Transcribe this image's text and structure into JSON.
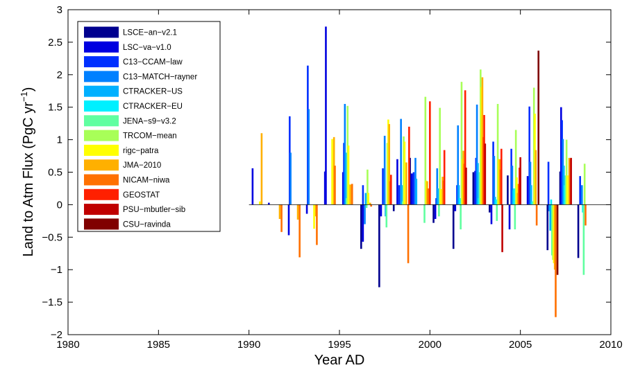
{
  "chart_data": {
    "type": "bar",
    "xlabel": "Year AD",
    "ylabel_main": "Land to Atm Flux (PgC yr",
    "ylabel_sup": "−1",
    "ylabel_close": ")",
    "xlim": [
      1980,
      2010
    ],
    "ylim": [
      -2,
      3
    ],
    "x_ticks": [
      1980,
      1985,
      1990,
      1995,
      2000,
      2005,
      2010
    ],
    "y_ticks": [
      -2,
      -1.5,
      -1,
      -0.5,
      0,
      0.5,
      1,
      1.5,
      2,
      2.5,
      3
    ],
    "x_tick_labels": [
      "1980",
      "1985",
      "1990",
      "1995",
      "2000",
      "2005",
      "2010"
    ],
    "y_tick_labels": [
      "−2",
      "−1.5",
      "−1",
      "−0.5",
      "0",
      "0.5",
      "1",
      "1.5",
      "2",
      "2.5",
      "3"
    ],
    "grid": false,
    "legend_position": "top-left",
    "series": [
      {
        "name": "LSCE−an−v2.1",
        "color": "#00008f",
        "points": [
          [
            1996.2,
            -0.68
          ],
          [
            1997.2,
            -1.27
          ],
          [
            1998.0,
            -0.1
          ],
          [
            1998.9,
            0.72
          ],
          [
            2000.2,
            -0.28
          ],
          [
            2001.3,
            -0.68
          ],
          [
            2002.4,
            0.5
          ],
          [
            2003.3,
            -0.12
          ],
          [
            2004.3,
            0.45
          ],
          [
            2006.5,
            -0.7
          ],
          [
            2007.2,
            0.51
          ],
          [
            2008.2,
            -0.82
          ]
        ]
      },
      {
        "name": "LSC−va−v1.0",
        "color": "#0000e0",
        "points": [
          [
            1990.2,
            0.56
          ],
          [
            1991.1,
            0.03
          ],
          [
            1992.2,
            -0.47
          ],
          [
            1993.2,
            -0.14
          ],
          [
            1994.2,
            0.51
          ],
          [
            1994.25,
            2.74
          ],
          [
            1995.2,
            0.5
          ],
          [
            1996.3,
            -0.57
          ],
          [
            1997.3,
            -0.18
          ],
          [
            1998.2,
            0.7
          ],
          [
            1999.0,
            0.48
          ],
          [
            2000.3,
            -0.22
          ],
          [
            2001.4,
            -0.1
          ],
          [
            2002.5,
            0.52
          ],
          [
            2003.4,
            -0.3
          ],
          [
            2004.4,
            -0.38
          ],
          [
            2005.4,
            0.44
          ],
          [
            2007.25,
            1.5
          ]
        ]
      },
      {
        "name": "C13−CCAM−law",
        "color": "#0030ff",
        "points": [
          [
            1992.25,
            1.36
          ],
          [
            1993.25,
            2.14
          ],
          [
            1995.25,
            0.95
          ],
          [
            1996.3,
            0.3
          ],
          [
            1997.4,
            0.56
          ],
          [
            1998.3,
            0.3
          ],
          [
            1999.1,
            0.5
          ],
          [
            2000.35,
            0.1
          ],
          [
            2001.5,
            0.3
          ],
          [
            2002.55,
            0.72
          ],
          [
            2003.5,
            0.97
          ],
          [
            2004.5,
            0.86
          ],
          [
            2005.5,
            1.51
          ],
          [
            2006.55,
            0.66
          ],
          [
            2007.3,
            1.3
          ],
          [
            2008.3,
            0.44
          ]
        ]
      },
      {
        "name": "C13−MATCH−rayner",
        "color": "#0080ff",
        "points": [
          [
            1992.3,
            0.8
          ],
          [
            1993.3,
            1.47
          ],
          [
            1995.3,
            1.55
          ],
          [
            1996.4,
            -0.3
          ],
          [
            1997.5,
            1.06
          ],
          [
            1998.4,
            1.32
          ],
          [
            1999.2,
            0.72
          ],
          [
            2000.4,
            0.56
          ],
          [
            2001.55,
            1.22
          ],
          [
            2002.6,
            1.54
          ],
          [
            2003.55,
            0.75
          ],
          [
            2004.55,
            0.6
          ],
          [
            2005.55,
            0.66
          ],
          [
            2006.6,
            -0.1
          ],
          [
            2007.35,
            1.01
          ],
          [
            2008.4,
            0.3
          ]
        ]
      },
      {
        "name": "CTRACKER−US",
        "color": "#00b0ff",
        "points": [
          [
            1995.35,
            0.8
          ],
          [
            1996.45,
            0.18
          ],
          [
            1997.55,
            -0.18
          ],
          [
            1998.45,
            0.3
          ],
          [
            1999.25,
            0.4
          ],
          [
            2000.45,
            0.25
          ],
          [
            2001.6,
            0.3
          ],
          [
            2002.65,
            0.64
          ],
          [
            2003.6,
            0.12
          ],
          [
            2004.6,
            0.22
          ],
          [
            2005.6,
            0.3
          ],
          [
            2006.65,
            -0.4
          ],
          [
            2007.4,
            0.6
          ]
        ]
      },
      {
        "name": "CTRACKER−EU",
        "color": "#00f0ff",
        "points": [
          [
            2001.65,
            0.1
          ],
          [
            2002.7,
            0.1
          ],
          [
            2003.65,
            0.08
          ],
          [
            2004.65,
            0.25
          ],
          [
            2005.65,
            0.05
          ],
          [
            2006.7,
            0.08
          ],
          [
            2007.45,
            0.3
          ],
          [
            2008.45,
            -0.12
          ]
        ]
      },
      {
        "name": "JENA−s9−v3.2",
        "color": "#60ffa0",
        "points": [
          [
            1995.4,
            0.1
          ],
          [
            1996.5,
            -0.05
          ],
          [
            1997.6,
            -0.35
          ],
          [
            1998.5,
            0.05
          ],
          [
            1999.7,
            -0.28
          ],
          [
            2000.5,
            -0.18
          ],
          [
            2001.7,
            -0.38
          ],
          [
            2002.75,
            0.5
          ],
          [
            2003.7,
            -0.25
          ],
          [
            2004.7,
            -0.38
          ],
          [
            2005.7,
            0.05
          ],
          [
            2006.75,
            -0.78
          ],
          [
            2007.5,
            0.45
          ],
          [
            2008.5,
            -1.08
          ]
        ]
      },
      {
        "name": "TRCOM−mean",
        "color": "#a8ff58",
        "points": [
          [
            1995.45,
            1.52
          ],
          [
            1996.55,
            0.54
          ],
          [
            1997.65,
            0.95
          ],
          [
            1998.55,
            1.05
          ],
          [
            1999.75,
            1.66
          ],
          [
            2000.55,
            1.49
          ],
          [
            2001.75,
            1.89
          ],
          [
            2002.8,
            2.08
          ],
          [
            2003.75,
            1.55
          ],
          [
            2004.75,
            1.15
          ],
          [
            2005.75,
            1.8
          ],
          [
            2006.8,
            -0.85
          ],
          [
            2007.55,
            1.0
          ],
          [
            2008.55,
            0.63
          ]
        ]
      },
      {
        "name": "rigc−patra",
        "color": "#ffff00",
        "points": [
          [
            1990.6,
            0.05
          ],
          [
            1993.6,
            -0.37
          ],
          [
            1994.6,
            1.01
          ],
          [
            1995.5,
            0.91
          ],
          [
            1996.6,
            0.18
          ],
          [
            1997.7,
            1.31
          ],
          [
            1998.6,
            0.97
          ],
          [
            1999.8,
            0.37
          ],
          [
            2000.6,
            0.24
          ],
          [
            2001.8,
            0.7
          ],
          [
            2002.85,
            1.81
          ],
          [
            2003.8,
            0.7
          ],
          [
            2004.8,
            0.42
          ],
          [
            2005.8,
            1.4
          ],
          [
            2006.85,
            -0.9
          ],
          [
            2007.6,
            0.45
          ]
        ]
      },
      {
        "name": "JMA−2010",
        "color": "#ffb000",
        "points": [
          [
            1990.7,
            1.1
          ],
          [
            1991.7,
            -0.22
          ],
          [
            1992.7,
            -0.23
          ],
          [
            1993.7,
            -0.18
          ],
          [
            1994.7,
            1.04
          ],
          [
            1995.6,
            0.31
          ],
          [
            1996.7,
            0.03
          ],
          [
            1997.75,
            1.24
          ],
          [
            1998.7,
            0.65
          ],
          [
            1999.85,
            0.36
          ],
          [
            2000.7,
            0.43
          ],
          [
            2001.85,
            0.83
          ],
          [
            2002.9,
            1.96
          ],
          [
            2003.85,
            0.7
          ],
          [
            2004.85,
            0.18
          ],
          [
            2005.85,
            0.84
          ],
          [
            2006.9,
            -1.0
          ],
          [
            2007.7,
            0.72
          ]
        ]
      },
      {
        "name": "NICAM−niwa",
        "color": "#ff7000",
        "points": [
          [
            1991.8,
            -0.42
          ],
          [
            1992.8,
            -0.81
          ],
          [
            1993.75,
            -0.62
          ],
          [
            1994.75,
            0.6
          ],
          [
            1995.7,
            0.32
          ],
          [
            1996.75,
            -0.03
          ],
          [
            1997.8,
            0.36
          ],
          [
            1998.8,
            -0.9
          ],
          [
            1999.9,
            0.25
          ],
          [
            2000.75,
            0.37
          ],
          [
            2001.9,
            0.63
          ],
          [
            2002.95,
            1.04
          ],
          [
            2003.9,
            0.54
          ],
          [
            2004.9,
            0.32
          ],
          [
            2005.9,
            -0.32
          ],
          [
            2006.95,
            -1.73
          ],
          [
            2007.75,
            0.7
          ],
          [
            2008.6,
            -0.32
          ]
        ]
      },
      {
        "name": "GEOSTAT",
        "color": "#ff2000",
        "points": [
          [
            1997.85,
            0.46
          ],
          [
            1998.85,
            1.2
          ],
          [
            2000.0,
            1.59
          ],
          [
            2000.8,
            0.84
          ],
          [
            2001.95,
            1.76
          ],
          [
            2003.0,
            1.38
          ],
          [
            2003.95,
            0.86
          ],
          [
            2004.95,
            0.57
          ]
        ]
      },
      {
        "name": "PSU−mbutler−sib",
        "color": "#c00000",
        "points": [
          [
            2002.0,
            0.57
          ],
          [
            2003.05,
            0.94
          ],
          [
            2004.0,
            -0.73
          ],
          [
            2005.0,
            0.73
          ],
          [
            2007.8,
            0.72
          ]
        ]
      },
      {
        "name": "CSU−ravinda",
        "color": "#800000",
        "points": [
          [
            2006.0,
            2.37
          ],
          [
            2007.05,
            -1.08
          ]
        ]
      }
    ]
  }
}
